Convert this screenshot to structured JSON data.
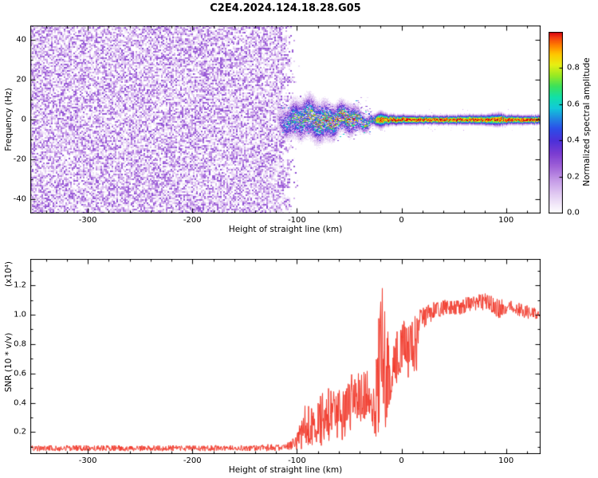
{
  "title": "C2E4.2024.124.18.28.G05",
  "chart_data": [
    {
      "type": "heatmap",
      "name": "spectrogram",
      "xlabel": "Height of straight line (km)",
      "ylabel": "Frequency (Hz)",
      "xlim": [
        -355,
        133
      ],
      "ylim": [
        -47.2,
        47.2
      ],
      "xticks": [
        -300,
        -200,
        -100,
        0,
        100
      ],
      "xtick_labels": [
        "-300",
        "-200",
        "-100",
        "0",
        "100"
      ],
      "yticks": [
        40,
        20,
        0,
        -20,
        -40
      ],
      "ytick_labels": [
        "40",
        "20",
        "0",
        "-20",
        "-40"
      ],
      "x_minor_step": 20,
      "y_minor_step": 10,
      "colorbar": {
        "label": "Normalized spectral amplitude",
        "ticks": [
          0,
          0.2,
          0.4,
          0.6,
          0.8
        ],
        "tick_labels": [
          "0.0",
          "0.2",
          "0.4",
          "0.6",
          "0.8"
        ],
        "range": [
          0,
          1
        ]
      },
      "colormap_stops": [
        [
          0,
          "#ffffff"
        ],
        [
          0.04,
          "#f4ecfa"
        ],
        [
          0.1,
          "#e3cdf3"
        ],
        [
          0.18,
          "#c59be7"
        ],
        [
          0.26,
          "#9e60d7"
        ],
        [
          0.33,
          "#7b3cd1"
        ],
        [
          0.4,
          "#4c30d9"
        ],
        [
          0.47,
          "#2c51e9"
        ],
        [
          0.53,
          "#1f8fe1"
        ],
        [
          0.58,
          "#11c9d9"
        ],
        [
          0.64,
          "#11e0a9"
        ],
        [
          0.7,
          "#3be15b"
        ],
        [
          0.76,
          "#98e923"
        ],
        [
          0.82,
          "#e7ef13"
        ],
        [
          0.88,
          "#ffc500"
        ],
        [
          0.93,
          "#ff7b00"
        ],
        [
          0.97,
          "#f33d11"
        ],
        [
          1,
          "#d9000d"
        ]
      ],
      "noise_field": {
        "x_end": -110,
        "edge_jitter": 5,
        "max_value": 0.3
      },
      "signal_profile": [
        [
          -121,
          3,
          0
        ],
        [
          -117,
          4,
          0.3
        ],
        [
          -113,
          5,
          0.5
        ],
        [
          -106,
          6.5,
          0.65
        ],
        [
          -96,
          7,
          0.72
        ],
        [
          -86,
          7.5,
          0.76
        ],
        [
          -76,
          7,
          0.8
        ],
        [
          -66,
          6,
          0.85
        ],
        [
          -56,
          5,
          0.9
        ],
        [
          -49,
          5.5,
          0.9
        ],
        [
          -43,
          4.2,
          0.85
        ],
        [
          -37,
          3.2,
          0.8
        ],
        [
          -32,
          2.6,
          0.72
        ],
        [
          -28,
          2,
          0.6
        ],
        [
          -24,
          2.4,
          0.85
        ],
        [
          -20,
          3,
          1
        ],
        [
          -16,
          2.2,
          0.95
        ],
        [
          -11,
          1.9,
          0.95
        ],
        [
          -5,
          1.8,
          1
        ],
        [
          5,
          1.7,
          1
        ],
        [
          20,
          1.6,
          1
        ],
        [
          40,
          1.6,
          1
        ],
        [
          60,
          1.7,
          1
        ],
        [
          80,
          1.8,
          1
        ],
        [
          93,
          2.4,
          0.95
        ],
        [
          100,
          1.7,
          1
        ],
        [
          120,
          1.6,
          1
        ],
        [
          133,
          1.6,
          1
        ]
      ],
      "scatter": {
        "x_start": -117,
        "x_end": -30,
        "sigma_hz": 7,
        "per_column": 6
      }
    },
    {
      "type": "line",
      "name": "snr",
      "xlabel": "Height of straight line (km)",
      "ylabel": "SNR (10 * v/v)",
      "ylabel_scale": "(x10⁴)",
      "xlim": [
        -355,
        133
      ],
      "ylim": [
        0.05,
        1.38
      ],
      "xticks": [
        -300,
        -200,
        -100,
        0,
        100
      ],
      "xtick_labels": [
        "-300",
        "-200",
        "-100",
        "0",
        "100"
      ],
      "yticks": [
        0.2,
        0.4,
        0.6,
        0.8,
        1.0,
        1.2
      ],
      "ytick_labels": [
        "0.2",
        "0.4",
        "0.6",
        "0.8",
        "1.0",
        "1.2"
      ],
      "x_minor_step": 20,
      "y_minor_step": 0.1,
      "line_color": "#f23c2e",
      "envelope": [
        [
          -355,
          0.07,
          0.11
        ],
        [
          -300,
          0.07,
          0.11
        ],
        [
          -250,
          0.07,
          0.11
        ],
        [
          -200,
          0.07,
          0.11
        ],
        [
          -150,
          0.07,
          0.11
        ],
        [
          -120,
          0.07,
          0.12
        ],
        [
          -108,
          0.08,
          0.13
        ],
        [
          -100,
          0.08,
          0.2
        ],
        [
          -95,
          0.08,
          0.32
        ],
        [
          -90,
          0.09,
          0.45
        ],
        [
          -85,
          0.1,
          0.38
        ],
        [
          -80,
          0.1,
          0.42
        ],
        [
          -75,
          0.11,
          0.48
        ],
        [
          -70,
          0.12,
          0.5
        ],
        [
          -65,
          0.13,
          0.48
        ],
        [
          -60,
          0.14,
          0.52
        ],
        [
          -55,
          0.15,
          0.55
        ],
        [
          -50,
          0.17,
          0.58
        ],
        [
          -46,
          0.2,
          0.64
        ],
        [
          -42,
          0.22,
          0.6
        ],
        [
          -38,
          0.25,
          0.62
        ],
        [
          -34,
          0.28,
          0.65
        ],
        [
          -31,
          0.3,
          0.6
        ],
        [
          -28,
          0.18,
          0.55
        ],
        [
          -25,
          0.12,
          0.7
        ],
        [
          -22,
          0.1,
          0.95
        ],
        [
          -20,
          0.15,
          1.2
        ],
        [
          -19,
          0.2,
          1.33
        ],
        [
          -18,
          0.18,
          1.15
        ],
        [
          -16,
          0.15,
          1.0
        ],
        [
          -14,
          0.3,
          0.95
        ],
        [
          -12,
          0.38,
          0.88
        ],
        [
          -9,
          0.45,
          0.82
        ],
        [
          -6,
          0.5,
          0.88
        ],
        [
          -3,
          0.55,
          0.92
        ],
        [
          0,
          0.62,
          0.95
        ],
        [
          3,
          0.7,
          0.98
        ],
        [
          6,
          0.55,
          1.0
        ],
        [
          9,
          0.6,
          1.02
        ],
        [
          12,
          0.48,
          1.0
        ],
        [
          15,
          0.68,
          1.02
        ],
        [
          18,
          0.85,
          1.04
        ],
        [
          22,
          0.92,
          1.06
        ],
        [
          28,
          0.95,
          1.08
        ],
        [
          35,
          0.98,
          1.1
        ],
        [
          45,
          1.0,
          1.1
        ],
        [
          55,
          1.0,
          1.12
        ],
        [
          65,
          1.02,
          1.12
        ],
        [
          75,
          1.02,
          1.14
        ],
        [
          82,
          1.03,
          1.15
        ],
        [
          88,
          1.0,
          1.12
        ],
        [
          93,
          0.97,
          1.1
        ],
        [
          98,
          1.0,
          1.12
        ],
        [
          105,
          1.0,
          1.1
        ],
        [
          112,
          0.99,
          1.08
        ],
        [
          118,
          0.97,
          1.07
        ],
        [
          125,
          0.97,
          1.05
        ],
        [
          133,
          0.97,
          1.04
        ]
      ]
    }
  ]
}
